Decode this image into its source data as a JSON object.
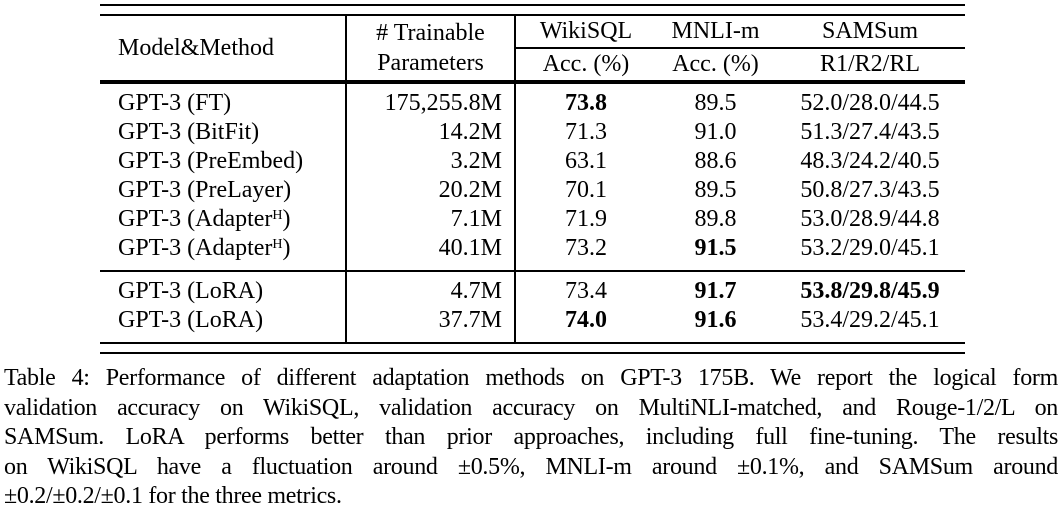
{
  "table": {
    "header": {
      "col1": "Model&Method",
      "col2_line1": "# Trainable",
      "col2_line2": "Parameters",
      "groups": [
        "WikiSQL",
        "MNLI-m",
        "SAMSum"
      ],
      "subs": [
        "Acc. (%)",
        "Acc. (%)",
        "R1/R2/RL"
      ]
    },
    "sections": [
      {
        "rows": [
          {
            "method": {
              "t": "GPT-3 (FT)"
            },
            "params": {
              "t": "175,255.8M"
            },
            "wikisql": {
              "t": "73.8",
              "b": true
            },
            "mnli": {
              "t": "89.5"
            },
            "samsum": {
              "t": "52.0/28.0/44.5"
            }
          },
          {
            "method": {
              "t": "GPT-3 (BitFit)"
            },
            "params": {
              "t": "14.2M"
            },
            "wikisql": {
              "t": "71.3"
            },
            "mnli": {
              "t": "91.0"
            },
            "samsum": {
              "t": "51.3/27.4/43.5"
            }
          },
          {
            "method": {
              "t": "GPT-3 (PreEmbed)"
            },
            "params": {
              "t": "3.2M"
            },
            "wikisql": {
              "t": "63.1"
            },
            "mnli": {
              "t": "88.6"
            },
            "samsum": {
              "t": "48.3/24.2/40.5"
            }
          },
          {
            "method": {
              "t": "GPT-3 (PreLayer)"
            },
            "params": {
              "t": "20.2M"
            },
            "wikisql": {
              "t": "70.1"
            },
            "mnli": {
              "t": "89.5"
            },
            "samsum": {
              "t": "50.8/27.3/43.5"
            }
          },
          {
            "method": {
              "t": "GPT-3 (Adapter",
              "sup": "H",
              "tail": ")"
            },
            "params": {
              "t": "7.1M"
            },
            "wikisql": {
              "t": "71.9"
            },
            "mnli": {
              "t": "89.8"
            },
            "samsum": {
              "t": "53.0/28.9/44.8"
            }
          },
          {
            "method": {
              "t": "GPT-3 (Adapter",
              "sup": "H",
              "tail": ")"
            },
            "params": {
              "t": "40.1M"
            },
            "wikisql": {
              "t": "73.2"
            },
            "mnli": {
              "t": "91.5",
              "b": true
            },
            "samsum": {
              "t": "53.2/29.0/45.1"
            }
          }
        ]
      },
      {
        "rows": [
          {
            "method": {
              "t": "GPT-3 (LoRA)"
            },
            "params": {
              "t": "4.7M"
            },
            "wikisql": {
              "t": "73.4"
            },
            "mnli": {
              "t": "91.7",
              "b": true
            },
            "samsum": {
              "t": "53.8/29.8/45.9",
              "b": true
            }
          },
          {
            "method": {
              "t": "GPT-3 (LoRA)"
            },
            "params": {
              "t": "37.7M"
            },
            "wikisql": {
              "t": "74.0",
              "b": true
            },
            "mnli": {
              "t": "91.6",
              "b": true
            },
            "samsum": {
              "t": "53.4/29.2/45.1"
            }
          }
        ]
      }
    ]
  },
  "caption": {
    "lines": [
      "Table 4: Performance of different adaptation methods on GPT-3 175B. We report the logical form",
      "validation accuracy on WikiSQL, validation accuracy on MultiNLI-matched, and Rouge-1/2/L on",
      "SAMSum. LoRA performs better than prior approaches, including full fine-tuning. The results",
      "on WikiSQL have a fluctuation around ±0.5%, MNLI-m around ±0.1%, and SAMSum around",
      "±0.2/±0.2/±0.1 for the three metrics."
    ]
  }
}
